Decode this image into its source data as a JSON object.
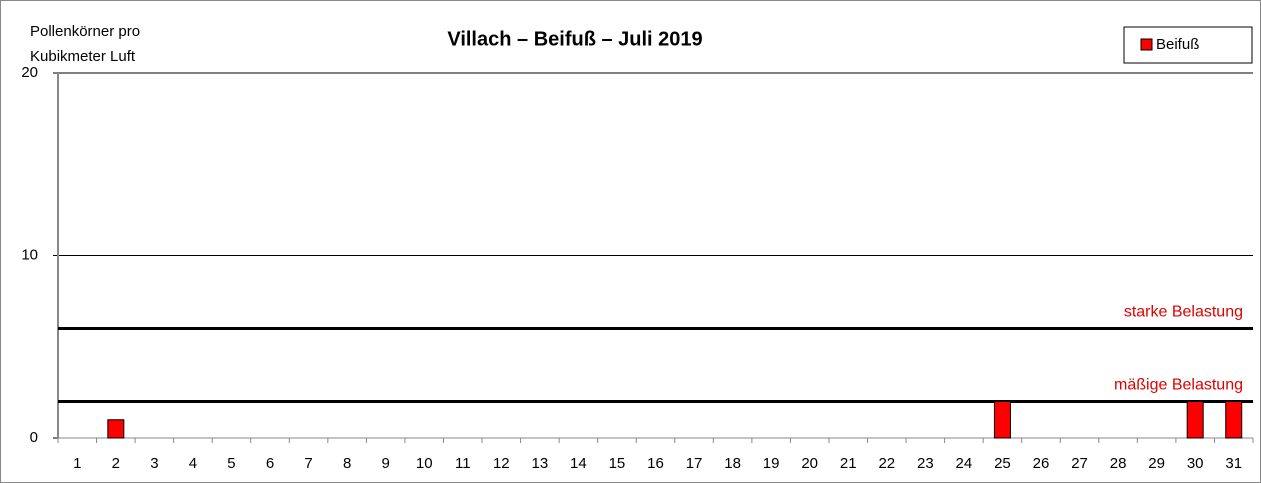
{
  "chart_data": {
    "type": "bar",
    "title": "Villach – Beifuß – Juli 2019",
    "ylabel": [
      "Pollenkörner pro",
      "Kubikmeter Luft"
    ],
    "categories": [
      "1",
      "2",
      "3",
      "4",
      "5",
      "6",
      "7",
      "8",
      "9",
      "10",
      "11",
      "12",
      "13",
      "14",
      "15",
      "16",
      "17",
      "18",
      "19",
      "20",
      "21",
      "22",
      "23",
      "24",
      "25",
      "26",
      "27",
      "28",
      "29",
      "30",
      "31"
    ],
    "series": [
      {
        "name": "Beifuß",
        "color": "#ff0000",
        "values": [
          0,
          1,
          0,
          0,
          0,
          0,
          0,
          0,
          0,
          0,
          0,
          0,
          0,
          0,
          0,
          0,
          0,
          0,
          0,
          0,
          0,
          0,
          0,
          0,
          2,
          0,
          0,
          0,
          0,
          2,
          2
        ]
      }
    ],
    "ylim": [
      0,
      20
    ],
    "yticks": [
      0,
      10,
      20
    ],
    "grid": true,
    "legend": "top-right",
    "thresholds": [
      {
        "value": 6,
        "label": "starke Belastung"
      },
      {
        "value": 2,
        "label": "mäßige Belastung"
      }
    ]
  }
}
